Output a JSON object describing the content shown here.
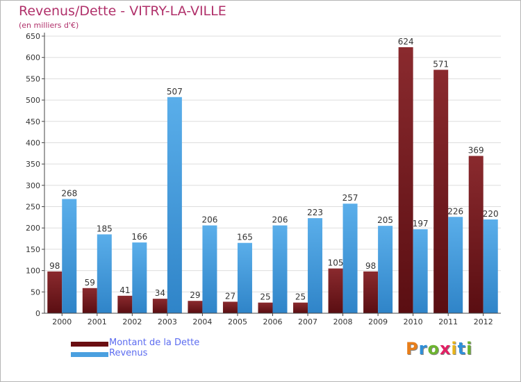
{
  "title": "Revenus/Dette - VITRY-LA-VILLE",
  "subtitle": "(en milliers d'€)",
  "logo": {
    "letters": [
      "P",
      "r",
      "o",
      "x",
      "i",
      "t",
      "i"
    ],
    "colors": [
      "#e87e1a",
      "#2f8fd8",
      "#6cb42f",
      "#e21f63",
      "#e8b41a",
      "#2f8fd8",
      "#6cb42f"
    ]
  },
  "colors": {
    "dette": "#7a1c20",
    "revenus": "#4aa0e0",
    "axis": "#444444",
    "grid": "#dddddd"
  },
  "chart_data": {
    "type": "bar",
    "title": "Revenus/Dette - VITRY-LA-VILLE",
    "subtitle": "(en milliers d'€)",
    "categories": [
      "2000",
      "2001",
      "2002",
      "2003",
      "2004",
      "2005",
      "2006",
      "2007",
      "2008",
      "2009",
      "2010",
      "2011",
      "2012"
    ],
    "series": [
      {
        "name": "Montant de la Dette",
        "color": "#7a1c20",
        "values": [
          98,
          59,
          41,
          34,
          29,
          27,
          25,
          25,
          105,
          98,
          624,
          571,
          369
        ]
      },
      {
        "name": "Revenus",
        "color": "#4aa0e0",
        "values": [
          268,
          185,
          166,
          507,
          206,
          165,
          206,
          223,
          257,
          205,
          197,
          226,
          220
        ]
      }
    ],
    "ylim": [
      0,
      650
    ],
    "yticks": [
      0,
      50,
      100,
      150,
      200,
      250,
      300,
      350,
      400,
      450,
      500,
      550,
      600,
      650
    ],
    "grid": true,
    "legend": "bottom-left"
  }
}
